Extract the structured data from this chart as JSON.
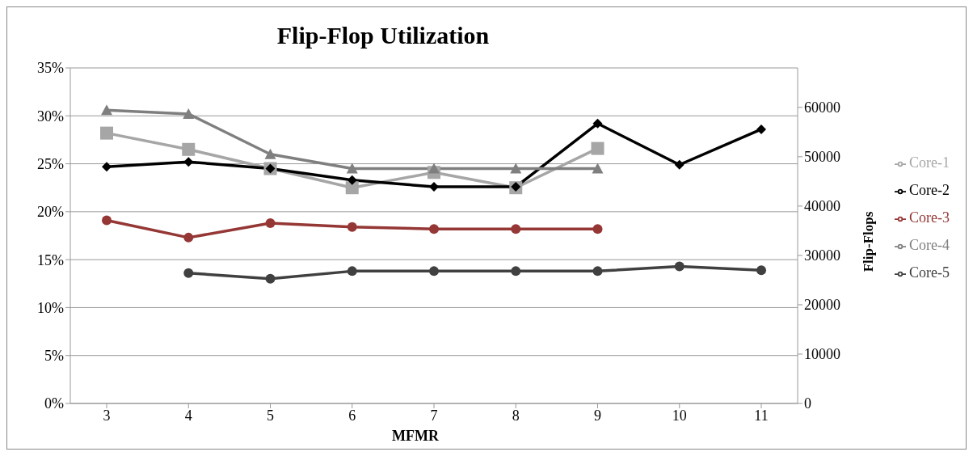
{
  "chart_data": {
    "type": "line",
    "title": "Flip-Flop Utilization",
    "xlabel": "MFMR",
    "y2label": "Flip-Flops",
    "categories": [
      "3",
      "4",
      "5",
      "6",
      "7",
      "8",
      "9",
      "10",
      "11"
    ],
    "series": [
      {
        "name": "Core-1",
        "color": "#a6a6a6",
        "marker": "square",
        "values": [
          28.2,
          26.5,
          24.5,
          22.5,
          24.1,
          22.5,
          26.6,
          null,
          null
        ]
      },
      {
        "name": "Core-2",
        "color": "#000000",
        "marker": "diamond",
        "values": [
          24.7,
          25.2,
          24.5,
          23.3,
          22.6,
          22.6,
          29.2,
          24.9,
          28.6
        ]
      },
      {
        "name": "Core-3",
        "color": "#953735",
        "marker": "circle",
        "values": [
          19.1,
          17.3,
          18.8,
          18.4,
          18.2,
          18.2,
          18.2,
          null,
          null
        ]
      },
      {
        "name": "Core-4",
        "color": "#7f7f7f",
        "marker": "triangle",
        "values": [
          30.6,
          30.2,
          26.0,
          24.5,
          24.5,
          24.5,
          24.5,
          null,
          null
        ]
      },
      {
        "name": "Core-5",
        "color": "#404040",
        "marker": "circle",
        "values": [
          null,
          13.6,
          13.0,
          13.8,
          13.8,
          13.8,
          13.8,
          14.3,
          13.9
        ]
      }
    ],
    "ylim": [
      0,
      35
    ],
    "yticks": [
      {
        "value": 0,
        "label": "0%"
      },
      {
        "value": 5,
        "label": "5%"
      },
      {
        "value": 10,
        "label": "10%"
      },
      {
        "value": 15,
        "label": "15%"
      },
      {
        "value": 20,
        "label": "20%"
      },
      {
        "value": 25,
        "label": "25%"
      },
      {
        "value": 30,
        "label": "30%"
      },
      {
        "value": 35,
        "label": "35%"
      }
    ],
    "y2lim": [
      0,
      68000
    ],
    "y2ticks": [
      0,
      10000,
      20000,
      30000,
      40000,
      50000,
      60000
    ],
    "grid": "y",
    "legend": "right",
    "line_style": "solid"
  }
}
